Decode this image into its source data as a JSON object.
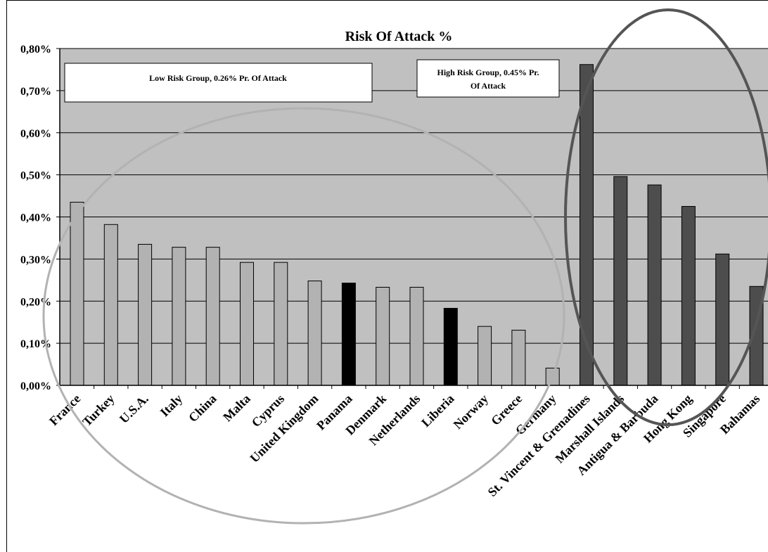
{
  "chart_data": {
    "type": "bar",
    "title": "Risk Of Attack %",
    "xlabel": "",
    "ylabel": "",
    "ylim": [
      0,
      0.8
    ],
    "yticks": [
      "0,00%",
      "0,10%",
      "0,20%",
      "0,30%",
      "0,40%",
      "0,50%",
      "0,60%",
      "0,70%",
      "0,80%"
    ],
    "grid": true,
    "categories": [
      "France",
      "Turkey",
      "U.S.A.",
      "Italy",
      "China",
      "Malta",
      "Cyprus",
      "United Kingdom",
      "Panama",
      "Denmark",
      "Netherlands",
      "Liberia",
      "Norway",
      "Greece",
      "Germany",
      "St. Vincent & Grenadines",
      "Marshall Islands",
      "Antigua & Barbuda",
      "Hong Kong",
      "Singapore",
      "Bahamas"
    ],
    "values": [
      0.435,
      0.382,
      0.335,
      0.328,
      0.328,
      0.292,
      0.292,
      0.248,
      0.243,
      0.233,
      0.233,
      0.183,
      0.14,
      0.131,
      0.041,
      0.762,
      0.496,
      0.476,
      0.425,
      0.312,
      0.235
    ],
    "bar_groups": [
      "low",
      "low",
      "low",
      "low",
      "low",
      "low",
      "low",
      "low",
      "flag",
      "low",
      "low",
      "flag",
      "low",
      "low",
      "low",
      "high",
      "high",
      "high",
      "high",
      "high",
      "high"
    ],
    "colors": {
      "plot_background": "#c0c0c0",
      "low": "#b2b2b2",
      "flag": "#000000",
      "high": "#4d4d4d",
      "low_ellipse": "#b2b2b2",
      "high_ellipse": "#555555"
    },
    "annotations": [
      {
        "id": "low",
        "text": "Low Risk Group, 0.26% Pr. Of Attack"
      },
      {
        "id": "high",
        "lines": [
          "High Risk Group, 0.45% Pr.",
          "Of Attack"
        ]
      }
    ]
  }
}
